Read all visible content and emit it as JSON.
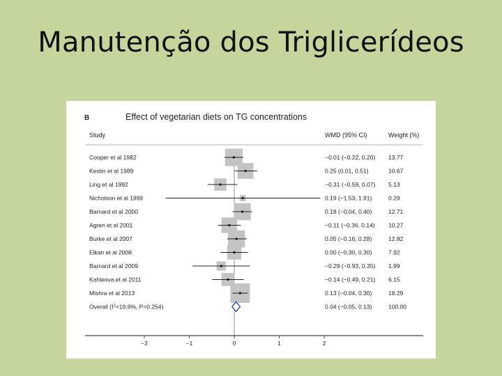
{
  "slide": {
    "title": "Manutenção dos Triglicerídeos"
  },
  "chart_data": {
    "type": "forest",
    "panel_label": "B",
    "title": "Effect of vegetarian diets on TG concentrations",
    "columns": {
      "study": "Study",
      "wmd": "WMD (95% CI)",
      "weight": "Weight (%)"
    },
    "xlim": [
      -2.5,
      2.5
    ],
    "x_ticks": [
      -2,
      -1,
      0,
      1,
      2
    ],
    "x_tick_labels": [
      "−2",
      "−1",
      "0",
      "1",
      "2"
    ],
    "studies": [
      {
        "label": "Cooper et al 1982",
        "est": -0.01,
        "lo": -0.22,
        "hi": 0.2,
        "ci_text": "−0.01 (−0.22, 0.20)",
        "weight": 13.77,
        "weight_text": "13.77"
      },
      {
        "label": "Kestin et al 1989",
        "est": 0.25,
        "lo": 0.01,
        "hi": 0.51,
        "ci_text": "0.25 (0.01, 0.51)",
        "weight": 10.67,
        "weight_text": "10.67"
      },
      {
        "label": "Ling et al 1992",
        "est": -0.31,
        "lo": -0.59,
        "hi": 0.07,
        "ci_text": "−0.31 (−0.59, 0.07)",
        "weight": 5.13,
        "weight_text": "5.13"
      },
      {
        "label": "Nicholson et al 1999",
        "est": 0.19,
        "lo": -1.53,
        "hi": 1.91,
        "ci_text": "0.19 (−1.53, 1.91)",
        "weight": 0.29,
        "weight_text": "0.29"
      },
      {
        "label": "Barnard et al 2000",
        "est": 0.18,
        "lo": -0.04,
        "hi": 0.4,
        "ci_text": "0.18 (−0.04, 0.40)",
        "weight": 12.71,
        "weight_text": "12.71"
      },
      {
        "label": "Agren et al 2001",
        "est": -0.11,
        "lo": -0.36,
        "hi": 0.14,
        "ci_text": "−0.11 (−0.36, 0.14)",
        "weight": 10.27,
        "weight_text": "10.27"
      },
      {
        "label": "Burke et al 2007",
        "est": 0.05,
        "lo": -0.16,
        "hi": 0.28,
        "ci_text": "0.05 (−0.16, 0.28)",
        "weight": 12.82,
        "weight_text": "12.82"
      },
      {
        "label": "Elkan et al 2008",
        "est": 0.0,
        "lo": -0.3,
        "hi": 0.3,
        "ci_text": "0.00 (−0.30, 0.30)",
        "weight": 7.92,
        "weight_text": "7.92"
      },
      {
        "label": "Barnard et al 2009",
        "est": -0.29,
        "lo": -0.93,
        "hi": 0.35,
        "ci_text": "−0.29 (−0.93, 0.35)",
        "weight": 1.99,
        "weight_text": "1.99"
      },
      {
        "label": "Kahleova et al 2011",
        "est": -0.14,
        "lo": -0.49,
        "hi": 0.21,
        "ci_text": "−0.14 (−0.49, 0.21)",
        "weight": 6.15,
        "weight_text": "6.15"
      },
      {
        "label": "Mishra et al 2013",
        "est": 0.13,
        "lo": -0.04,
        "hi": 0.3,
        "ci_text": "0.13 (−0.04, 0.30)",
        "weight": 18.29,
        "weight_text": "18.29"
      }
    ],
    "overall": {
      "label_pre": "Overall  (I",
      "label_sup": "2",
      "label_post": "=19.9%, P=0.254)",
      "est": 0.04,
      "lo": -0.05,
      "hi": 0.13,
      "ci_text": "0.04 (−0.05, 0.13)",
      "weight_text": "100.00"
    },
    "colors": {
      "box": "#c4c4c4",
      "diamond_stroke": "#3d4f8f",
      "line": "#222222",
      "axis": "#444444"
    }
  }
}
